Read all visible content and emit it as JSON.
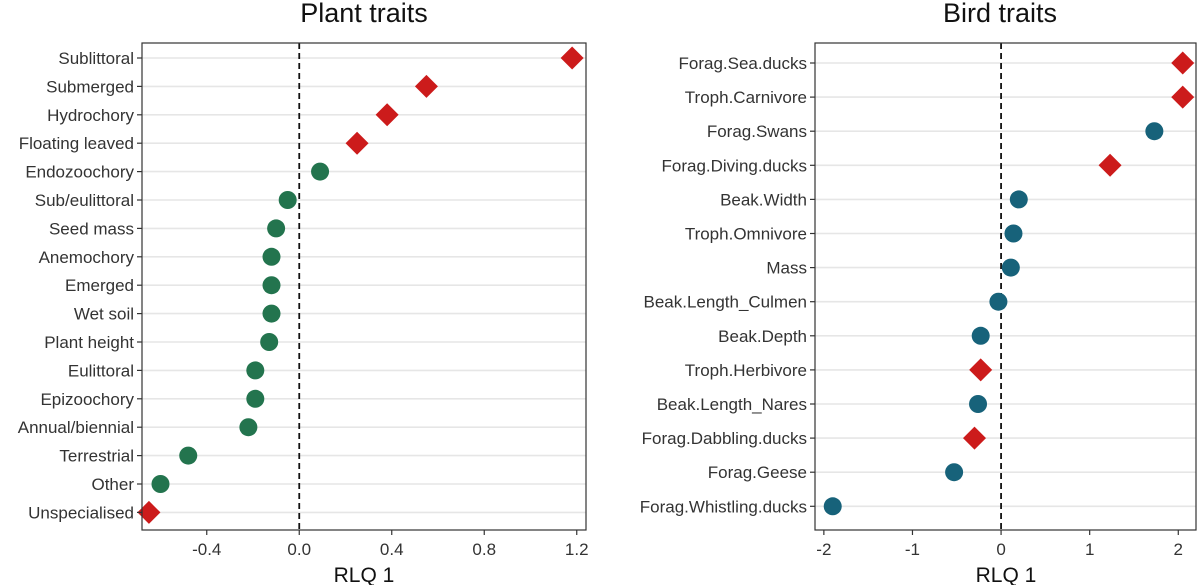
{
  "chart_data": [
    {
      "type": "scatter",
      "title": "Plant traits",
      "xlabel": "RLQ 1",
      "ylabel": "",
      "xlim": [
        -0.68,
        1.24
      ],
      "xticks": [
        -0.4,
        0.0,
        0.4,
        0.8,
        1.2
      ],
      "xtick_labels": [
        "-0.4",
        "0.0",
        "0.4",
        "0.8",
        "1.2"
      ],
      "reference_line": 0,
      "circle_color": "#23744e",
      "diamond_color": "#cc1b1b",
      "categories": [
        "Sublittoral",
        "Submerged",
        "Hydrochory",
        "Floating leaved",
        "Endozoochory",
        "Sub/eulittoral",
        "Seed mass",
        "Anemochory",
        "Emerged",
        "Wet soil",
        "Plant height",
        "Eulittoral",
        "Epizoochory",
        "Annual/biennial",
        "Terrestrial",
        "Other",
        "Unspecialised"
      ],
      "values": [
        1.18,
        0.55,
        0.38,
        0.25,
        0.09,
        -0.05,
        -0.1,
        -0.12,
        -0.12,
        -0.12,
        -0.13,
        -0.19,
        -0.19,
        -0.22,
        -0.48,
        -0.6,
        -0.65
      ],
      "markers": [
        "diamond",
        "diamond",
        "diamond",
        "diamond",
        "circle",
        "circle",
        "circle",
        "circle",
        "circle",
        "circle",
        "circle",
        "circle",
        "circle",
        "circle",
        "circle",
        "circle",
        "diamond"
      ]
    },
    {
      "type": "scatter",
      "title": "Bird traits",
      "xlabel": "RLQ 1",
      "ylabel": "",
      "xlim": [
        -2.1,
        2.2
      ],
      "xticks": [
        -2,
        -1,
        0,
        1,
        2
      ],
      "xtick_labels": [
        "-2",
        "-1",
        "0",
        "1",
        "2"
      ],
      "reference_line": 0,
      "circle_color": "#17627a",
      "diamond_color": "#cc1b1b",
      "categories": [
        "Forag.Sea.ducks",
        "Troph.Carnivore",
        "Forag.Swans",
        "Forag.Diving.ducks",
        "Beak.Width",
        "Troph.Omnivore",
        "Mass",
        "Beak.Length_Culmen",
        "Beak.Depth",
        "Troph.Herbivore",
        "Beak.Length_Nares",
        "Forag.Dabbling.ducks",
        "Forag.Geese",
        "Forag.Whistling.ducks"
      ],
      "values": [
        2.05,
        2.05,
        1.73,
        1.23,
        0.2,
        0.14,
        0.11,
        -0.03,
        -0.23,
        -0.23,
        -0.26,
        -0.3,
        -0.53,
        -1.9
      ],
      "markers": [
        "diamond",
        "diamond",
        "circle",
        "diamond",
        "circle",
        "circle",
        "circle",
        "circle",
        "circle",
        "diamond",
        "circle",
        "diamond",
        "circle",
        "circle"
      ]
    }
  ]
}
